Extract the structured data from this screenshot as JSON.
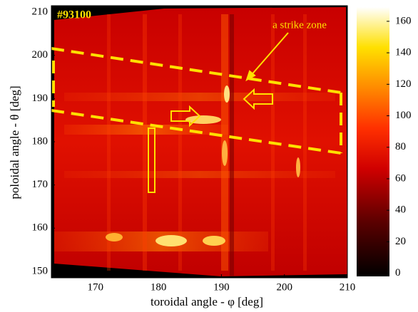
{
  "chart_data": {
    "type": "heatmap",
    "title": "#93100",
    "xlabel": "toroidal angle - φ [deg]",
    "ylabel": "poloidal angle - θ [deg]",
    "xlim": [
      163,
      210
    ],
    "xticks": [
      170,
      180,
      190,
      200,
      210
    ],
    "ylim": [
      148.5,
      211.5
    ],
    "yticks": [
      150,
      160,
      170,
      180,
      190,
      200,
      210
    ],
    "colorbar": {
      "lim": [
        -2,
        169
      ],
      "ticks": [
        0,
        20,
        40,
        60,
        80,
        100,
        120,
        140,
        160
      ]
    },
    "annotation": "a strike zone"
  }
}
